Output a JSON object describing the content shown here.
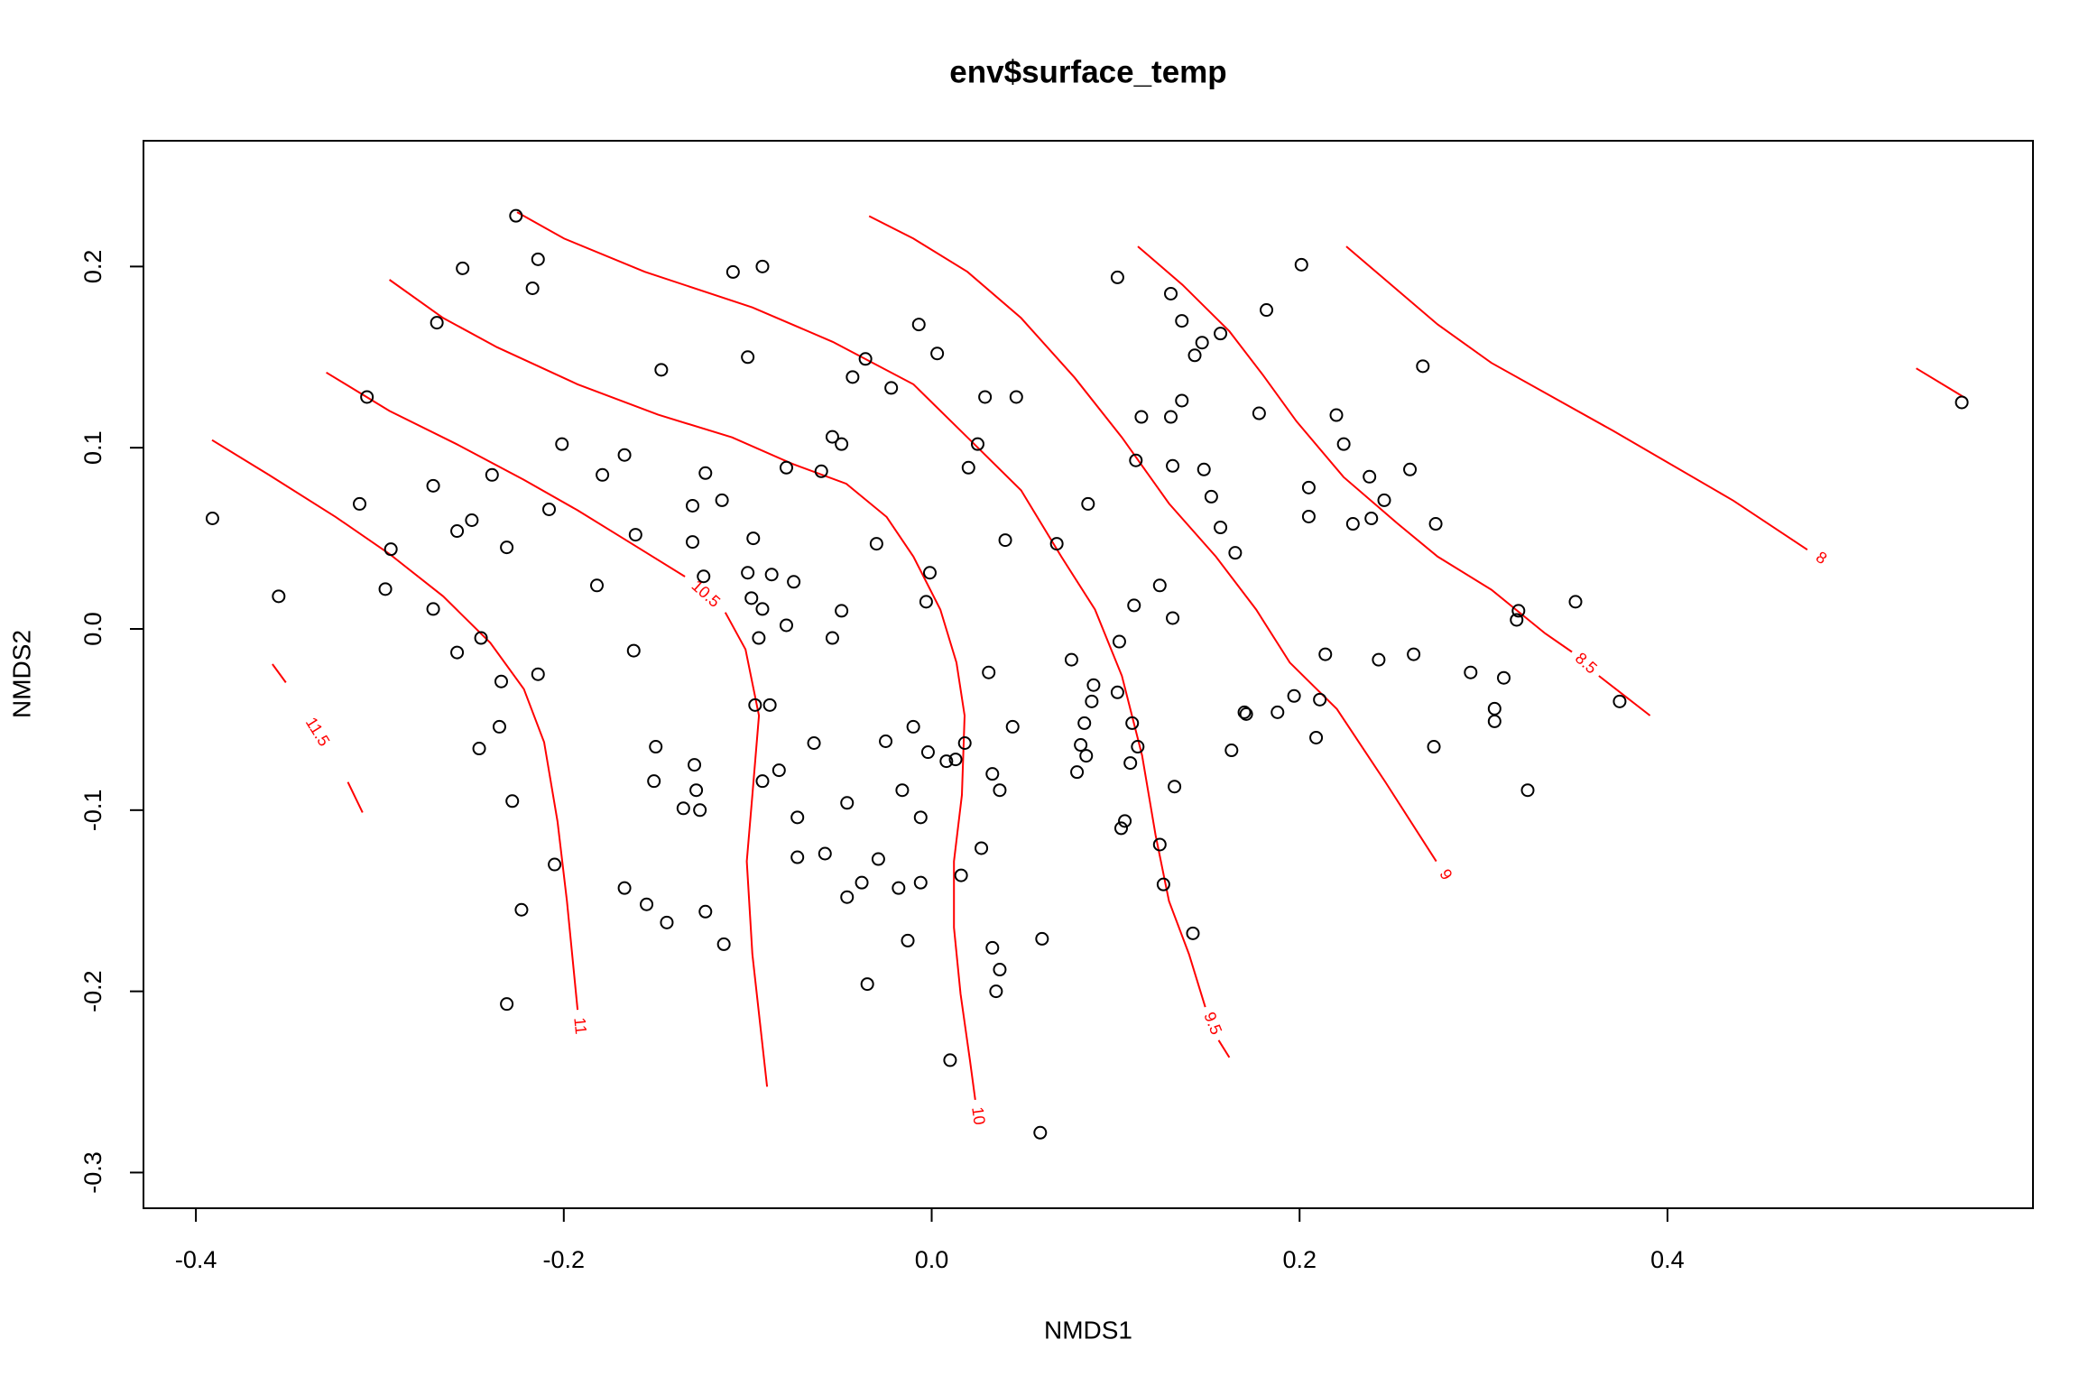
{
  "chart_data": {
    "type": "scatter",
    "title": "env$surface_temp",
    "x_label": "NMDS1",
    "y_label": "NMDS2",
    "xlim": [
      -0.4285,
      0.5987
    ],
    "ylim": [
      -0.3197,
      0.2694
    ],
    "xticks": [
      -0.4,
      -0.2,
      {
        "value": 0,
        "label": "0.0"
      },
      0.2,
      0.4
    ],
    "yticks": [
      -0.3,
      -0.2,
      -0.1,
      {
        "value": 0,
        "label": "0.0"
      },
      0.1,
      0.2
    ],
    "color": "#000000",
    "contour_color": "#ff0000",
    "x": [
      -0.391,
      -0.355,
      -0.307,
      -0.311,
      -0.294,
      -0.297,
      -0.269,
      -0.255,
      -0.226,
      -0.214,
      -0.217,
      -0.271,
      -0.271,
      -0.258,
      -0.25,
      -0.239,
      -0.231,
      -0.258,
      -0.245,
      -0.234,
      -0.214,
      -0.208,
      -0.201,
      -0.235,
      -0.246,
      -0.228,
      -0.205,
      -0.223,
      -0.231,
      -0.179,
      -0.167,
      -0.182,
      -0.161,
      -0.162,
      -0.147,
      -0.123,
      -0.114,
      -0.13,
      -0.13,
      -0.124,
      -0.15,
      -0.151,
      -0.129,
      -0.128,
      -0.135,
      -0.126,
      -0.167,
      -0.155,
      -0.144,
      -0.123,
      -0.113,
      -0.108,
      -0.092,
      -0.1,
      -0.079,
      -0.097,
      -0.1,
      -0.087,
      -0.075,
      -0.098,
      -0.092,
      -0.094,
      -0.079,
      -0.096,
      -0.088,
      -0.092,
      -0.083,
      -0.073,
      -0.073,
      -0.058,
      -0.064,
      -0.054,
      -0.049,
      -0.06,
      -0.054,
      -0.049,
      -0.043,
      -0.036,
      -0.022,
      -0.03,
      -0.007,
      0.003,
      -0.046,
      -0.038,
      -0.046,
      -0.029,
      -0.025,
      -0.016,
      -0.01,
      -0.001,
      -0.003,
      -0.002,
      -0.006,
      -0.018,
      -0.006,
      -0.013,
      -0.035,
      0.008,
      0.013,
      0.018,
      0.016,
      0.027,
      0.031,
      0.033,
      0.037,
      0.033,
      0.037,
      0.035,
      0.01,
      0.06,
      0.059,
      0.044,
      0.04,
      0.02,
      0.025,
      0.029,
      0.046,
      0.068,
      0.085,
      0.076,
      0.088,
      0.087,
      0.083,
      0.081,
      0.084,
      0.079,
      0.101,
      0.102,
      0.109,
      0.112,
      0.108,
      0.105,
      0.103,
      0.124,
      0.126,
      0.142,
      0.132,
      0.11,
      0.124,
      0.131,
      0.101,
      0.13,
      0.136,
      0.147,
      0.143,
      0.157,
      0.114,
      0.136,
      0.13,
      0.111,
      0.131,
      0.148,
      0.152,
      0.157,
      0.165,
      0.182,
      0.201,
      0.178,
      0.17,
      0.171,
      0.163,
      0.188,
      0.197,
      0.211,
      0.209,
      0.214,
      0.205,
      0.205,
      0.22,
      0.224,
      0.238,
      0.229,
      0.239,
      0.246,
      0.26,
      0.267,
      0.274,
      0.243,
      0.262,
      0.273,
      0.293,
      0.306,
      0.306,
      0.311,
      0.319,
      0.318,
      0.324,
      0.35,
      0.374,
      0.56
    ],
    "y": [
      0.061,
      0.018,
      0.128,
      0.069,
      0.044,
      0.022,
      0.169,
      0.199,
      0.228,
      0.204,
      0.188,
      0.079,
      0.011,
      0.054,
      0.06,
      0.085,
      0.045,
      -0.013,
      -0.005,
      -0.029,
      -0.025,
      0.066,
      0.102,
      -0.054,
      -0.066,
      -0.095,
      -0.13,
      -0.155,
      -0.207,
      0.085,
      0.096,
      0.024,
      0.052,
      -0.012,
      0.143,
      0.086,
      0.071,
      0.068,
      0.048,
      0.029,
      -0.065,
      -0.084,
      -0.075,
      -0.089,
      -0.099,
      -0.1,
      -0.143,
      -0.152,
      -0.162,
      -0.156,
      -0.174,
      0.197,
      0.2,
      0.15,
      0.089,
      0.05,
      0.031,
      0.03,
      0.026,
      0.017,
      0.011,
      -0.005,
      0.002,
      -0.042,
      -0.042,
      -0.084,
      -0.078,
      -0.104,
      -0.126,
      -0.124,
      -0.063,
      -0.005,
      0.01,
      0.087,
      0.106,
      0.102,
      0.139,
      0.149,
      0.133,
      0.047,
      0.168,
      0.152,
      -0.096,
      -0.14,
      -0.148,
      -0.127,
      -0.062,
      -0.089,
      -0.054,
      0.031,
      0.015,
      -0.068,
      -0.104,
      -0.143,
      -0.14,
      -0.172,
      -0.196,
      -0.073,
      -0.072,
      -0.063,
      -0.136,
      -0.121,
      -0.024,
      -0.08,
      -0.089,
      -0.176,
      -0.188,
      -0.2,
      -0.238,
      -0.171,
      -0.278,
      -0.054,
      0.049,
      0.089,
      0.102,
      0.128,
      0.128,
      0.047,
      0.069,
      -0.017,
      -0.031,
      -0.04,
      -0.052,
      -0.064,
      -0.07,
      -0.079,
      -0.035,
      -0.007,
      -0.052,
      -0.065,
      -0.074,
      -0.106,
      -0.11,
      -0.119,
      -0.141,
      -0.168,
      -0.087,
      0.013,
      0.024,
      0.006,
      0.194,
      0.185,
      0.17,
      0.158,
      0.151,
      0.163,
      0.117,
      0.126,
      0.117,
      0.093,
      0.09,
      0.088,
      0.073,
      0.056,
      0.042,
      0.176,
      0.201,
      0.119,
      -0.046,
      -0.047,
      -0.067,
      -0.046,
      -0.037,
      -0.039,
      -0.06,
      -0.014,
      0.078,
      0.062,
      0.118,
      0.102,
      0.084,
      0.058,
      0.061,
      0.071,
      0.088,
      0.145,
      0.058,
      -0.017,
      -0.014,
      -0.065,
      -0.024,
      -0.044,
      -0.051,
      -0.027,
      0.01,
      0.005,
      -0.089,
      0.015,
      -0.04,
      0.125
    ],
    "contours": [
      {
        "level": 8,
        "x": [
          0.2254,
          0.2751,
          0.3043,
          0.37,
          0.4358,
          0.476
        ],
        "y": [
          0.2111,
          0.168,
          0.1468,
          0.1096,
          0.0708,
          0.0437
        ]
      },
      {
        "x": [
          0.5352,
          0.5615
        ],
        "y": [
          0.1438,
          0.1277
        ]
      },
      {
        "level": 8.5,
        "x": [
          0.1121,
          0.1363,
          0.1618,
          0.1801,
          0.1983,
          0.2239,
          0.2532,
          0.2751,
          0.3043,
          0.3335,
          0.3481,
          null,
          0.3627,
          0.3905
        ],
        "y": [
          0.2111,
          0.1899,
          0.1643,
          0.1401,
          0.1146,
          0.0838,
          0.0582,
          0.0399,
          0.0216,
          -0.0025,
          -0.0127,
          null,
          -0.0259,
          -0.0478
        ]
      },
      {
        "level": 9,
        "x": [
          -0.034,
          -0.0099,
          0.0194,
          0.0486,
          0.0778,
          0.1034,
          0.129,
          0.1545,
          0.1764,
          0.1947,
          0.2203,
          0.2466,
          0.2743
        ],
        "y": [
          0.2278,
          0.2154,
          0.1971,
          0.1716,
          0.1386,
          0.1057,
          0.0692,
          0.0399,
          0.0107,
          -0.0186,
          -0.0442,
          -0.0844,
          -0.1283
        ]
      },
      {
        "level": 9.5,
        "x": [
          -0.2254,
          -0.1998,
          -0.156,
          -0.0975,
          -0.0537,
          -0.0099,
          0.0194,
          0.0486,
          0.0705,
          0.0888,
          0.1034,
          0.1144,
          0.1217,
          0.129,
          0.1399,
          0.1487,
          null,
          0.156,
          0.1618
        ],
        "y": [
          0.23,
          0.2154,
          0.1971,
          0.1774,
          0.1584,
          0.135,
          0.1057,
          0.0765,
          0.0399,
          0.0107,
          -0.0259,
          -0.0698,
          -0.1137,
          -0.1502,
          -0.1795,
          -0.2087,
          null,
          -0.227,
          -0.2365
        ]
      },
      {
        "level": 10,
        "x": [
          -0.2948,
          -0.2656,
          -0.2364,
          -0.1925,
          -0.1487,
          -0.1085,
          -0.0757,
          -0.0464,
          -0.0245,
          -0.0099,
          0.0047,
          0.0135,
          0.0179,
          0.0164,
          0.0121,
          0.0121,
          0.0157,
          0.0208,
          0.0237
        ],
        "y": [
          0.1927,
          0.1716,
          0.1555,
          0.135,
          0.1182,
          0.1057,
          0.0911,
          0.0801,
          0.0618,
          0.0399,
          0.0107,
          -0.0186,
          -0.0478,
          -0.0917,
          -0.1283,
          -0.1648,
          -0.2014,
          -0.238,
          -0.2599
        ]
      },
      {
        "level": 10.5,
        "x": [
          -0.3291,
          -0.2948,
          -0.2583,
          -0.2217,
          -0.1925,
          -0.1633,
          -0.1341,
          null,
          -0.1122,
          -0.1012,
          -0.0939,
          -0.0975,
          -0.1005,
          -0.0975,
          -0.0895
        ],
        "y": [
          0.1415,
          0.1203,
          0.102,
          0.0823,
          0.0655,
          0.0472,
          0.0289,
          null,
          0.0091,
          -0.0113,
          -0.0478,
          -0.0917,
          -0.1283,
          -0.1795,
          -0.2526
        ]
      },
      {
        "level": 11,
        "x": [
          -0.3912,
          -0.3606,
          -0.324,
          -0.2948,
          -0.2656,
          -0.24,
          -0.2217,
          -0.2107,
          -0.2034,
          -0.1983,
          -0.1925
        ],
        "y": [
          0.1042,
          0.0852,
          0.0618,
          0.0414,
          0.018,
          -0.0076,
          -0.0332,
          -0.0625,
          -0.1064,
          -0.1502,
          -0.2102
        ]
      },
      {
        "level": 11.5,
        "x": [
          -0.3584,
          -0.3511,
          null,
          -0.3174,
          -0.3094
        ],
        "y": [
          -0.0194,
          -0.0296,
          null,
          -0.0845,
          -0.1013
        ]
      }
    ]
  }
}
